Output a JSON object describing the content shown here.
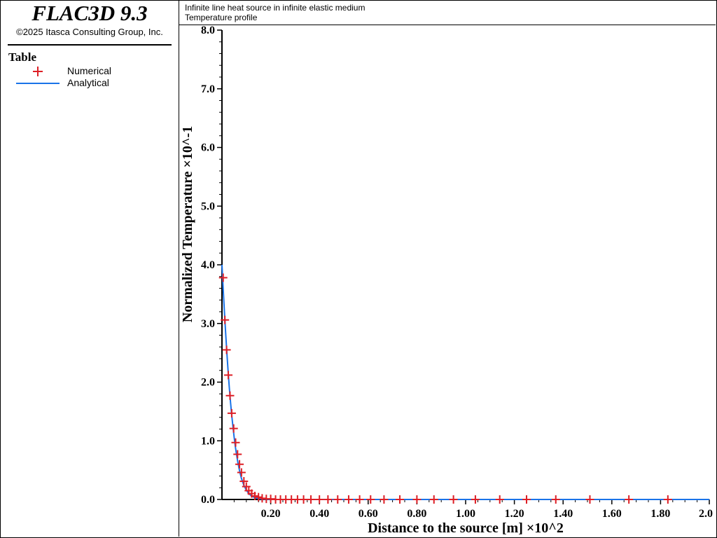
{
  "app": {
    "title": "FLAC3D 9.3",
    "copyright": "©2025 Itasca Consulting Group, Inc."
  },
  "legend": {
    "heading": "Table",
    "items": [
      {
        "label": "Numerical",
        "marker": "plus",
        "color": "#dd1f26"
      },
      {
        "label": "Analytical",
        "marker": "line",
        "color": "#1a73e8"
      }
    ]
  },
  "plot": {
    "title": "Infinite line heat source in infinite elastic medium",
    "subtitle": "Temperature profile"
  },
  "chart_data": {
    "type": "line",
    "xlabel": "Distance to the source [m] ×10^2",
    "ylabel": "Normalized Temperature ×10^-1",
    "xlim": [
      0.0,
      2.0
    ],
    "ylim": [
      0.0,
      8.0
    ],
    "x_ticks": [
      "0.20",
      "0.40",
      "0.60",
      "0.80",
      "1.00",
      "1.20",
      "1.40",
      "1.60",
      "1.80",
      "2.0"
    ],
    "x_tick_values": [
      0.2,
      0.4,
      0.6,
      0.8,
      1.0,
      1.2,
      1.4,
      1.6,
      1.8,
      2.0
    ],
    "y_ticks": [
      "0.0",
      "1.0",
      "2.0",
      "3.0",
      "4.0",
      "5.0",
      "6.0",
      "7.0",
      "8.0"
    ],
    "y_tick_values": [
      0,
      1,
      2,
      3,
      4,
      5,
      6,
      7,
      8
    ],
    "grid": false,
    "series": [
      {
        "name": "Numerical",
        "style": "markers",
        "color": "#dd1f26",
        "x": [
          0.005,
          0.012,
          0.019,
          0.026,
          0.033,
          0.04,
          0.048,
          0.056,
          0.064,
          0.072,
          0.08,
          0.09,
          0.1,
          0.11,
          0.122,
          0.135,
          0.15,
          0.165,
          0.182,
          0.2,
          0.22,
          0.24,
          0.262,
          0.285,
          0.31,
          0.335,
          0.365,
          0.4,
          0.435,
          0.475,
          0.52,
          0.565,
          0.61,
          0.665,
          0.73,
          0.8,
          0.87,
          0.95,
          1.04,
          1.14,
          1.25,
          1.37,
          1.51,
          1.67,
          1.83
        ],
        "y": [
          3.78,
          3.06,
          2.55,
          2.12,
          1.77,
          1.47,
          1.21,
          0.97,
          0.77,
          0.6,
          0.46,
          0.31,
          0.22,
          0.15,
          0.1,
          0.06,
          0.04,
          0.02,
          0.01,
          0.01,
          0.0,
          0.0,
          0.0,
          0.0,
          0.0,
          0.0,
          0.0,
          0.0,
          0.0,
          0.0,
          0.0,
          0.0,
          0.0,
          0.0,
          0.0,
          0.0,
          0.0,
          0.0,
          0.0,
          0.0,
          0.0,
          0.0,
          0.0,
          0.0,
          0.0
        ]
      },
      {
        "name": "Analytical",
        "style": "line",
        "color": "#1a73e8",
        "x": [
          0.0,
          0.005,
          0.01,
          0.015,
          0.02,
          0.025,
          0.03,
          0.035,
          0.04,
          0.045,
          0.05,
          0.055,
          0.06,
          0.065,
          0.07,
          0.075,
          0.08,
          0.085,
          0.09,
          0.095,
          0.1,
          0.11,
          0.12,
          0.13,
          0.14,
          0.15,
          0.16,
          0.17,
          0.18,
          0.2,
          0.22,
          0.25,
          0.3,
          0.4,
          0.6,
          1.0,
          2.0
        ],
        "y": [
          4.0,
          3.6,
          3.2,
          2.85,
          2.5,
          2.2,
          1.92,
          1.66,
          1.44,
          1.24,
          1.06,
          0.9,
          0.76,
          0.64,
          0.53,
          0.44,
          0.36,
          0.3,
          0.24,
          0.2,
          0.16,
          0.1,
          0.065,
          0.04,
          0.025,
          0.015,
          0.009,
          0.005,
          0.003,
          0.001,
          0.0,
          0.0,
          0.0,
          0.0,
          0.0,
          0.0,
          0.0
        ]
      }
    ]
  }
}
